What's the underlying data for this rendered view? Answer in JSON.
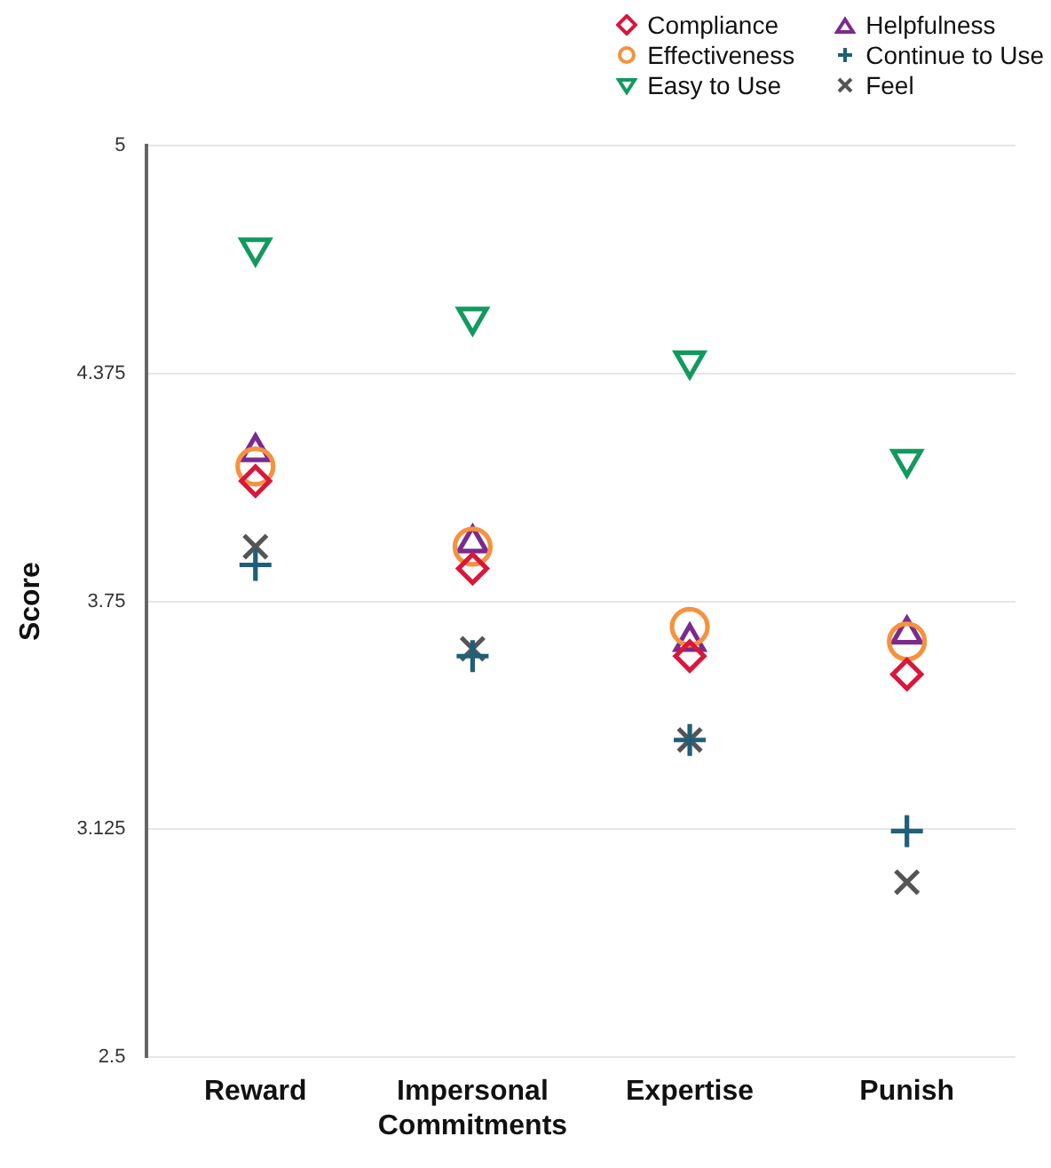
{
  "chart_data": {
    "type": "scatter",
    "ylabel": "Score",
    "categories": [
      "Reward",
      "Impersonal Commitments",
      "Expertise",
      "Punish"
    ],
    "ylim": [
      2.5,
      5
    ],
    "yticks": [
      2.5,
      3.125,
      3.75,
      4.375,
      5
    ],
    "grid": "y",
    "legend": "top right",
    "series": [
      {
        "name": "Compliance",
        "color": "#d9173b",
        "marker": "diamond",
        "values": [
          4.08,
          3.84,
          3.6,
          3.55
        ]
      },
      {
        "name": "Effectiveness",
        "color": "#f5923e",
        "marker": "circle",
        "values": [
          4.12,
          3.9,
          3.68,
          3.64
        ]
      },
      {
        "name": "Easy to Use",
        "color": "#129a5e",
        "marker": "triangle-down",
        "values": [
          4.72,
          4.53,
          4.41,
          4.14
        ]
      },
      {
        "name": "Helpfulness",
        "color": "#7b2a8e",
        "marker": "triangle",
        "values": [
          4.16,
          3.91,
          3.64,
          3.66
        ]
      },
      {
        "name": "Continue to Use",
        "color": "#1f5f7a",
        "marker": "cross",
        "values": [
          3.85,
          3.6,
          3.37,
          3.12
        ]
      },
      {
        "name": "Feel",
        "color": "#555555",
        "marker": "x",
        "values": [
          3.9,
          3.62,
          3.37,
          2.98
        ]
      }
    ]
  }
}
